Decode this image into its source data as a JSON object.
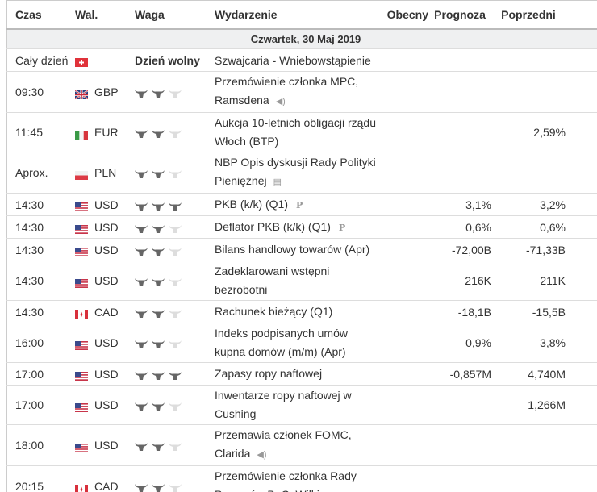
{
  "headers": {
    "time": "Czas",
    "currency": "Wal.",
    "importance": "Waga",
    "event": "Wydarzenie",
    "actual": "Obecny",
    "forecast": "Prognoza",
    "previous": "Poprzedni"
  },
  "date_label": "Czwartek, 30 Maj 2019",
  "holiday": {
    "time": "Cały dzień",
    "flag": "CH",
    "importance": "Dzień wolny",
    "event": "Szwajcaria - Wniebowstąpienie"
  },
  "colors": {
    "bull_active": "#666666",
    "bull_inactive": "#dddddd",
    "date_bg": "#eff0f1"
  },
  "rows": [
    {
      "time": "09:30",
      "flag": "GB",
      "currency": "GBP",
      "importance": 2,
      "event": "Przemówienie członka MPC, Ramsdena",
      "icon": "speech-icon",
      "actual": "",
      "forecast": "",
      "previous": ""
    },
    {
      "time": "11:45",
      "flag": "IT",
      "currency": "EUR",
      "importance": 2,
      "event": "Aukcja 10-letnich obligacji rządu Włoch (BTP)",
      "icon": "",
      "actual": "",
      "forecast": "",
      "previous": "2,59%"
    },
    {
      "time": "Aprox.",
      "flag": "PL",
      "currency": "PLN",
      "importance": 2,
      "event": "NBP Opis dyskusji Rady Polityki Pieniężnej",
      "icon": "report-icon",
      "actual": "",
      "forecast": "",
      "previous": ""
    },
    {
      "time": "14:30",
      "flag": "US",
      "currency": "USD",
      "importance": 3,
      "event": "PKB (k/k) (Q1)",
      "icon": "preliminary-icon",
      "actual": "",
      "forecast": "3,1%",
      "previous": "3,2%"
    },
    {
      "time": "14:30",
      "flag": "US",
      "currency": "USD",
      "importance": 2,
      "event": "Deflator PKB (k/k) (Q1)",
      "icon": "preliminary-icon",
      "actual": "",
      "forecast": "0,6%",
      "previous": "0,6%"
    },
    {
      "time": "14:30",
      "flag": "US",
      "currency": "USD",
      "importance": 2,
      "event": "Bilans handlowy towarów (Apr)",
      "icon": "",
      "actual": "",
      "forecast": "-72,00B",
      "previous": "-71,33B"
    },
    {
      "time": "14:30",
      "flag": "US",
      "currency": "USD",
      "importance": 2,
      "event": "Zadeklarowani wstępni bezrobotni",
      "icon": "",
      "actual": "",
      "forecast": "216K",
      "previous": "211K"
    },
    {
      "time": "14:30",
      "flag": "CA",
      "currency": "CAD",
      "importance": 2,
      "event": "Rachunek bieżący (Q1)",
      "icon": "",
      "actual": "",
      "forecast": "-18,1B",
      "previous": "-15,5B"
    },
    {
      "time": "16:00",
      "flag": "US",
      "currency": "USD",
      "importance": 2,
      "event": "Indeks podpisanych umów kupna domów (m/m) (Apr)",
      "icon": "",
      "actual": "",
      "forecast": "0,9%",
      "previous": "3,8%"
    },
    {
      "time": "17:00",
      "flag": "US",
      "currency": "USD",
      "importance": 3,
      "event": "Zapasy ropy naftowej",
      "icon": "",
      "actual": "",
      "forecast": "-0,857M",
      "previous": "4,740M"
    },
    {
      "time": "17:00",
      "flag": "US",
      "currency": "USD",
      "importance": 2,
      "event": "Inwentarze ropy naftowej w Cushing",
      "icon": "",
      "actual": "",
      "forecast": "",
      "previous": "1,266M"
    },
    {
      "time": "18:00",
      "flag": "US",
      "currency": "USD",
      "importance": 2,
      "event": "Przemawia członek FOMC, Clarida",
      "icon": "speech-icon",
      "actual": "",
      "forecast": "",
      "previous": ""
    },
    {
      "time": "20:15",
      "flag": "CA",
      "currency": "CAD",
      "importance": 2,
      "event": "Przemówienie członka Rady Prezesów BoC, Wilkins",
      "icon": "speech-icon",
      "actual": "",
      "forecast": "",
      "previous": ""
    }
  ]
}
